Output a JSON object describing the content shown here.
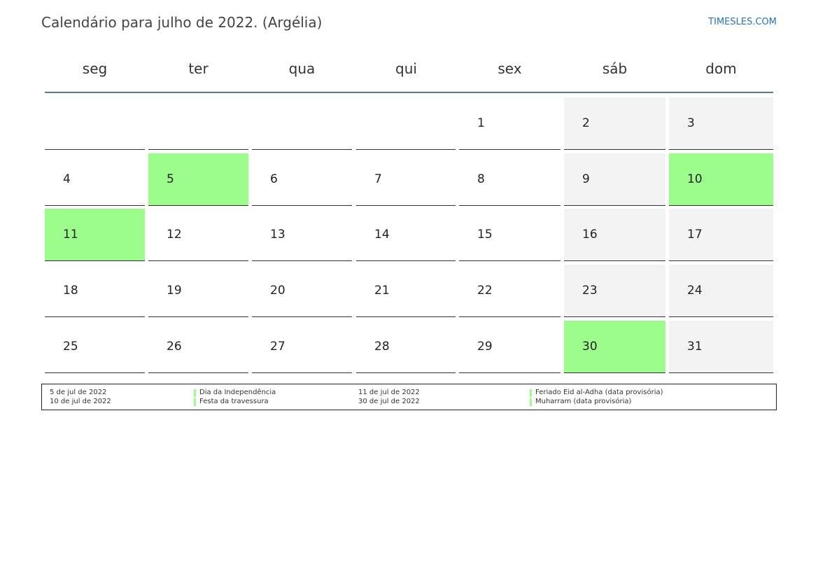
{
  "title": "Calendário para julho de 2022. (Argélia)",
  "brand": "TIMESLES.COM",
  "weekdays": [
    "seg",
    "ter",
    "qua",
    "qui",
    "sex",
    "sáb",
    "dom"
  ],
  "colors": {
    "holiday": "#9cfc8c",
    "weekend": "#f3f3f3",
    "header_rule": "#5a7494",
    "brand": "#2a73b8"
  },
  "weeks": [
    [
      null,
      null,
      null,
      null,
      1,
      2,
      3
    ],
    [
      4,
      5,
      6,
      7,
      8,
      9,
      10
    ],
    [
      11,
      12,
      13,
      14,
      15,
      16,
      17
    ],
    [
      18,
      19,
      20,
      21,
      22,
      23,
      24
    ],
    [
      25,
      26,
      27,
      28,
      29,
      30,
      31
    ]
  ],
  "holiday_days": [
    5,
    10,
    11,
    30
  ],
  "legend": [
    {
      "date": "5 de jul de 2022",
      "name": "Dia da Independência"
    },
    {
      "date": "10 de jul de 2022",
      "name": "Festa da travessura"
    },
    {
      "date": "11 de jul de 2022",
      "name": "Feriado Eid al-Adha (data provisória)"
    },
    {
      "date": "30 de jul de 2022",
      "name": "Muharram (data provisória)"
    }
  ]
}
